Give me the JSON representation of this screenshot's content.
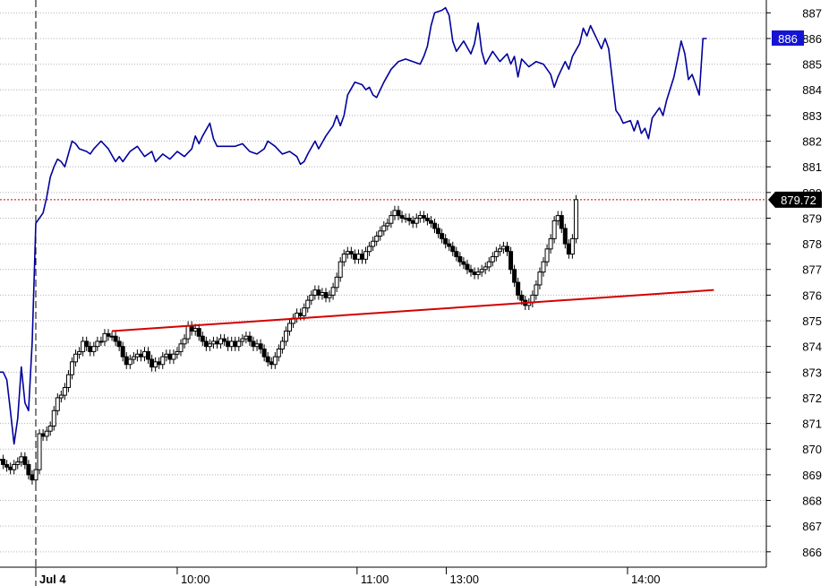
{
  "chart_data": {
    "type": "line",
    "title": "",
    "xlabel": "",
    "ylabel": "",
    "ylim": [
      865.4,
      887.5
    ],
    "y_ticks": [
      887,
      886,
      885,
      884,
      883,
      882,
      881,
      880,
      879,
      878,
      877,
      876,
      875,
      874,
      873,
      872,
      871,
      870,
      869,
      868,
      867,
      866
    ],
    "x_ticks": [
      {
        "label": "Jul 4",
        "t": 0.0
      },
      {
        "label": "10:00",
        "t": 0.195
      },
      {
        "label": "11:00",
        "t": 0.443
      },
      {
        "label": "13:00",
        "t": 0.566
      },
      {
        "label": "14:00",
        "t": 0.816
      }
    ],
    "session_divider_t": 0.0,
    "grid": "horizontal-dotted",
    "colors": {
      "line_series": "#00009c",
      "candles": "#000000",
      "trendline": "#d40000",
      "price_ref_line": "#d40000",
      "badge_blue_bg": "#1414d2",
      "badge_blue_text": "#ffffff",
      "badge_black_bg": "#000000",
      "badge_black_text": "#ffffff"
    },
    "line_series": {
      "style": "line",
      "last_label": "886",
      "points": [
        [
          -0.05,
          873.0
        ],
        [
          -0.045,
          873.0
        ],
        [
          -0.04,
          872.7
        ],
        [
          -0.035,
          871.5
        ],
        [
          -0.03,
          870.2
        ],
        [
          -0.025,
          871.2
        ],
        [
          -0.02,
          873.2
        ],
        [
          -0.015,
          871.8
        ],
        [
          -0.01,
          871.5
        ],
        [
          -0.005,
          874.2
        ],
        [
          0.0,
          878.8
        ],
        [
          0.01,
          879.2
        ],
        [
          0.015,
          879.8
        ],
        [
          0.02,
          880.6
        ],
        [
          0.025,
          881.0
        ],
        [
          0.03,
          881.3
        ],
        [
          0.035,
          881.2
        ],
        [
          0.04,
          881.0
        ],
        [
          0.045,
          881.5
        ],
        [
          0.05,
          882.0
        ],
        [
          0.055,
          881.9
        ],
        [
          0.06,
          881.7
        ],
        [
          0.07,
          881.6
        ],
        [
          0.075,
          881.5
        ],
        [
          0.08,
          881.7
        ],
        [
          0.09,
          882.0
        ],
        [
          0.1,
          881.7
        ],
        [
          0.11,
          881.2
        ],
        [
          0.115,
          881.4
        ],
        [
          0.12,
          881.2
        ],
        [
          0.13,
          881.6
        ],
        [
          0.14,
          881.8
        ],
        [
          0.15,
          881.4
        ],
        [
          0.16,
          881.6
        ],
        [
          0.165,
          881.2
        ],
        [
          0.175,
          881.5
        ],
        [
          0.185,
          881.3
        ],
        [
          0.195,
          881.6
        ],
        [
          0.205,
          881.4
        ],
        [
          0.215,
          881.7
        ],
        [
          0.22,
          882.2
        ],
        [
          0.225,
          881.9
        ],
        [
          0.23,
          882.2
        ],
        [
          0.24,
          882.7
        ],
        [
          0.245,
          882.1
        ],
        [
          0.25,
          881.8
        ],
        [
          0.26,
          881.8
        ],
        [
          0.275,
          881.8
        ],
        [
          0.285,
          881.9
        ],
        [
          0.295,
          881.6
        ],
        [
          0.305,
          881.5
        ],
        [
          0.315,
          881.7
        ],
        [
          0.32,
          882.0
        ],
        [
          0.33,
          881.8
        ],
        [
          0.34,
          881.5
        ],
        [
          0.35,
          881.6
        ],
        [
          0.36,
          881.4
        ],
        [
          0.365,
          881.1
        ],
        [
          0.37,
          881.2
        ],
        [
          0.375,
          881.5
        ],
        [
          0.385,
          882.0
        ],
        [
          0.39,
          881.7
        ],
        [
          0.4,
          882.2
        ],
        [
          0.41,
          882.6
        ],
        [
          0.415,
          883.0
        ],
        [
          0.42,
          882.6
        ],
        [
          0.425,
          883.0
        ],
        [
          0.43,
          883.8
        ],
        [
          0.44,
          884.3
        ],
        [
          0.45,
          884.2
        ],
        [
          0.455,
          884.0
        ],
        [
          0.46,
          884.1
        ],
        [
          0.465,
          883.8
        ],
        [
          0.47,
          883.7
        ],
        [
          0.48,
          884.3
        ],
        [
          0.49,
          884.8
        ],
        [
          0.5,
          885.1
        ],
        [
          0.51,
          885.2
        ],
        [
          0.52,
          885.1
        ],
        [
          0.53,
          885.0
        ],
        [
          0.535,
          885.3
        ],
        [
          0.54,
          885.7
        ],
        [
          0.545,
          886.5
        ],
        [
          0.55,
          887.0
        ],
        [
          0.56,
          887.1
        ],
        [
          0.565,
          887.2
        ],
        [
          0.57,
          886.9
        ],
        [
          0.575,
          885.9
        ],
        [
          0.58,
          885.5
        ],
        [
          0.59,
          885.9
        ],
        [
          0.6,
          885.4
        ],
        [
          0.605,
          885.8
        ],
        [
          0.61,
          886.6
        ],
        [
          0.615,
          885.5
        ],
        [
          0.62,
          885.0
        ],
        [
          0.63,
          885.5
        ],
        [
          0.64,
          885.1
        ],
        [
          0.65,
          885.4
        ],
        [
          0.655,
          885.0
        ],
        [
          0.66,
          885.3
        ],
        [
          0.665,
          884.5
        ],
        [
          0.67,
          885.2
        ],
        [
          0.68,
          884.9
        ],
        [
          0.69,
          885.1
        ],
        [
          0.7,
          885.0
        ],
        [
          0.71,
          884.6
        ],
        [
          0.715,
          884.1
        ],
        [
          0.72,
          884.5
        ],
        [
          0.73,
          885.1
        ],
        [
          0.735,
          884.8
        ],
        [
          0.74,
          885.3
        ],
        [
          0.75,
          885.8
        ],
        [
          0.755,
          886.4
        ],
        [
          0.76,
          886.1
        ],
        [
          0.765,
          886.5
        ],
        [
          0.775,
          885.9
        ],
        [
          0.78,
          885.6
        ],
        [
          0.785,
          886.0
        ],
        [
          0.79,
          885.6
        ],
        [
          0.8,
          883.2
        ],
        [
          0.805,
          883.0
        ],
        [
          0.81,
          882.7
        ],
        [
          0.82,
          882.8
        ],
        [
          0.825,
          882.4
        ],
        [
          0.83,
          882.8
        ],
        [
          0.835,
          882.3
        ],
        [
          0.84,
          882.5
        ],
        [
          0.845,
          882.1
        ],
        [
          0.85,
          882.9
        ],
        [
          0.86,
          883.3
        ],
        [
          0.865,
          883.0
        ],
        [
          0.87,
          883.6
        ],
        [
          0.88,
          884.5
        ],
        [
          0.885,
          885.2
        ],
        [
          0.89,
          885.9
        ],
        [
          0.895,
          885.4
        ],
        [
          0.9,
          884.4
        ],
        [
          0.905,
          884.6
        ],
        [
          0.91,
          884.2
        ],
        [
          0.915,
          883.8
        ],
        [
          0.92,
          886.0
        ],
        [
          0.925,
          886.0
        ]
      ]
    },
    "candles": {
      "style": "ohlc-candlestick",
      "last_label": "879.72",
      "closes": [
        [
          -0.05,
          869.6
        ],
        [
          -0.045,
          869.4
        ],
        [
          -0.04,
          869.3
        ],
        [
          -0.035,
          869.2
        ],
        [
          -0.03,
          869.4
        ],
        [
          -0.025,
          869.5
        ],
        [
          -0.02,
          869.7
        ],
        [
          -0.015,
          869.4
        ],
        [
          -0.01,
          869.0
        ],
        [
          -0.005,
          868.8
        ],
        [
          0.0,
          869.2
        ],
        [
          0.005,
          870.6
        ],
        [
          0.01,
          870.5
        ],
        [
          0.015,
          870.7
        ],
        [
          0.02,
          870.9
        ],
        [
          0.025,
          871.5
        ],
        [
          0.03,
          872.0
        ],
        [
          0.035,
          872.1
        ],
        [
          0.04,
          872.4
        ],
        [
          0.045,
          872.9
        ],
        [
          0.05,
          873.4
        ],
        [
          0.055,
          873.7
        ],
        [
          0.06,
          873.8
        ],
        [
          0.065,
          874.2
        ],
        [
          0.07,
          874.0
        ],
        [
          0.075,
          873.8
        ],
        [
          0.08,
          874.0
        ],
        [
          0.085,
          874.2
        ],
        [
          0.09,
          874.2
        ],
        [
          0.095,
          874.5
        ],
        [
          0.1,
          874.4
        ],
        [
          0.105,
          874.4
        ],
        [
          0.11,
          874.2
        ],
        [
          0.115,
          874.0
        ],
        [
          0.12,
          873.6
        ],
        [
          0.125,
          873.3
        ],
        [
          0.13,
          873.5
        ],
        [
          0.135,
          873.6
        ],
        [
          0.14,
          873.7
        ],
        [
          0.145,
          873.6
        ],
        [
          0.15,
          873.8
        ],
        [
          0.155,
          873.5
        ],
        [
          0.16,
          873.2
        ],
        [
          0.165,
          873.4
        ],
        [
          0.17,
          873.3
        ],
        [
          0.175,
          873.6
        ],
        [
          0.18,
          873.7
        ],
        [
          0.185,
          873.5
        ],
        [
          0.19,
          873.7
        ],
        [
          0.195,
          873.8
        ],
        [
          0.2,
          874.1
        ],
        [
          0.205,
          874.3
        ],
        [
          0.21,
          874.8
        ],
        [
          0.215,
          874.6
        ],
        [
          0.22,
          874.7
        ],
        [
          0.225,
          874.4
        ],
        [
          0.23,
          874.2
        ],
        [
          0.235,
          874.0
        ],
        [
          0.24,
          874.1
        ],
        [
          0.245,
          874.2
        ],
        [
          0.25,
          874.1
        ],
        [
          0.255,
          874.3
        ],
        [
          0.26,
          874.2
        ],
        [
          0.265,
          874.0
        ],
        [
          0.27,
          874.2
        ],
        [
          0.275,
          874.0
        ],
        [
          0.28,
          874.2
        ],
        [
          0.285,
          874.3
        ],
        [
          0.29,
          874.4
        ],
        [
          0.295,
          874.2
        ],
        [
          0.3,
          874.0
        ],
        [
          0.305,
          874.1
        ],
        [
          0.31,
          873.9
        ],
        [
          0.315,
          873.6
        ],
        [
          0.32,
          873.4
        ],
        [
          0.325,
          873.3
        ],
        [
          0.33,
          873.6
        ],
        [
          0.335,
          873.9
        ],
        [
          0.34,
          874.2
        ],
        [
          0.345,
          874.6
        ],
        [
          0.35,
          874.9
        ],
        [
          0.355,
          875.1
        ],
        [
          0.36,
          875.3
        ],
        [
          0.365,
          875.2
        ],
        [
          0.37,
          875.5
        ],
        [
          0.375,
          875.8
        ],
        [
          0.38,
          876.0
        ],
        [
          0.385,
          876.2
        ],
        [
          0.39,
          876.0
        ],
        [
          0.395,
          876.1
        ],
        [
          0.4,
          875.9
        ],
        [
          0.405,
          876.0
        ],
        [
          0.41,
          876.3
        ],
        [
          0.415,
          876.7
        ],
        [
          0.42,
          877.3
        ],
        [
          0.425,
          877.6
        ],
        [
          0.43,
          877.7
        ],
        [
          0.435,
          877.6
        ],
        [
          0.44,
          877.4
        ],
        [
          0.445,
          877.6
        ],
        [
          0.45,
          877.4
        ],
        [
          0.455,
          877.7
        ],
        [
          0.46,
          877.9
        ],
        [
          0.465,
          878.1
        ],
        [
          0.47,
          878.3
        ],
        [
          0.475,
          878.5
        ],
        [
          0.48,
          878.7
        ],
        [
          0.485,
          878.8
        ],
        [
          0.49,
          879.1
        ],
        [
          0.495,
          879.3
        ],
        [
          0.5,
          879.1
        ],
        [
          0.505,
          879.0
        ],
        [
          0.51,
          879.0
        ],
        [
          0.515,
          878.9
        ],
        [
          0.52,
          878.8
        ],
        [
          0.525,
          879.0
        ],
        [
          0.53,
          879.1
        ],
        [
          0.535,
          879.0
        ],
        [
          0.54,
          878.9
        ],
        [
          0.545,
          878.8
        ],
        [
          0.55,
          878.6
        ],
        [
          0.555,
          878.4
        ],
        [
          0.56,
          878.2
        ],
        [
          0.565,
          878.0
        ],
        [
          0.57,
          877.9
        ],
        [
          0.575,
          877.7
        ],
        [
          0.58,
          877.5
        ],
        [
          0.585,
          877.3
        ],
        [
          0.59,
          877.2
        ],
        [
          0.595,
          877.0
        ],
        [
          0.6,
          876.9
        ],
        [
          0.605,
          876.8
        ],
        [
          0.61,
          876.9
        ],
        [
          0.615,
          877.0
        ],
        [
          0.62,
          877.1
        ],
        [
          0.625,
          877.3
        ],
        [
          0.63,
          877.5
        ],
        [
          0.635,
          877.7
        ],
        [
          0.64,
          877.8
        ],
        [
          0.645,
          877.9
        ],
        [
          0.65,
          877.7
        ],
        [
          0.655,
          877.0
        ],
        [
          0.66,
          876.5
        ],
        [
          0.665,
          876.0
        ],
        [
          0.67,
          875.8
        ],
        [
          0.675,
          875.6
        ],
        [
          0.68,
          875.7
        ],
        [
          0.685,
          876.0
        ],
        [
          0.69,
          876.4
        ],
        [
          0.695,
          876.9
        ],
        [
          0.7,
          877.3
        ],
        [
          0.705,
          877.8
        ],
        [
          0.71,
          878.2
        ],
        [
          0.715,
          878.9
        ],
        [
          0.72,
          879.1
        ],
        [
          0.725,
          878.6
        ],
        [
          0.73,
          878.0
        ],
        [
          0.735,
          877.6
        ],
        [
          0.74,
          878.2
        ],
        [
          0.745,
          879.72
        ]
      ]
    },
    "trendline": {
      "label": "",
      "from": [
        0.105,
        874.6
      ],
      "to": [
        0.935,
        876.2
      ]
    },
    "price_ref_line": {
      "value": 879.72
    }
  }
}
